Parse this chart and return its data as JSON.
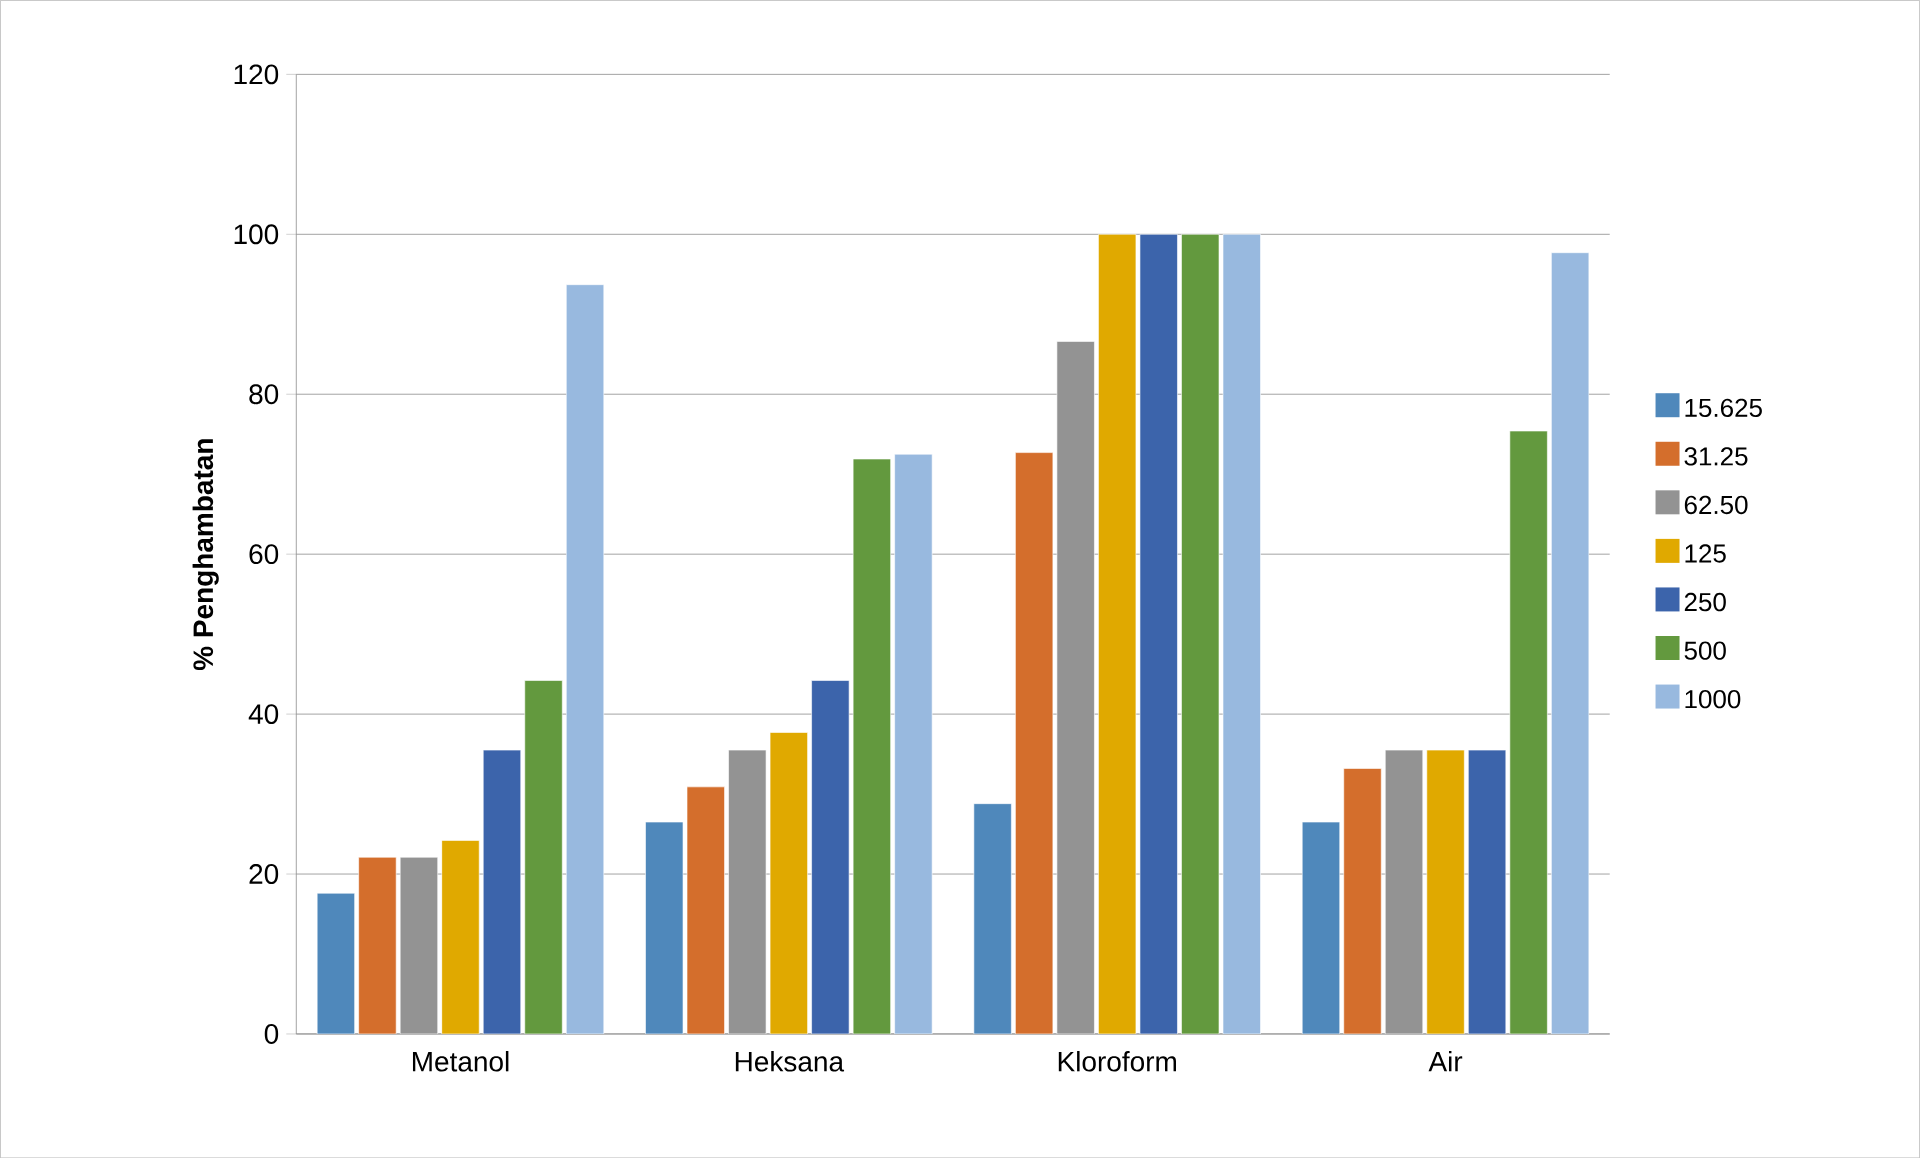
{
  "chart_data": {
    "type": "bar",
    "ylabel": "% Penghambatan",
    "categories": [
      "Metanol",
      "Heksana",
      "Kloroform",
      "Air"
    ],
    "series": [
      {
        "name": "15.625",
        "color": "#4f88bb",
        "values": [
          17.6,
          26.5,
          28.8,
          26.5
        ]
      },
      {
        "name": "31.25",
        "color": "#d46e2c",
        "values": [
          22.1,
          30.9,
          72.7,
          33.2
        ]
      },
      {
        "name": "62.50",
        "color": "#939393",
        "values": [
          22.1,
          35.5,
          86.6,
          35.5
        ]
      },
      {
        "name": "125",
        "color": "#e0a900",
        "values": [
          24.2,
          37.7,
          100,
          35.5
        ]
      },
      {
        "name": "250",
        "color": "#3c64ab",
        "values": [
          35.5,
          44.2,
          100,
          35.5
        ]
      },
      {
        "name": "500",
        "color": "#63993e",
        "values": [
          44.2,
          71.9,
          100,
          75.4
        ]
      },
      {
        "name": "1000",
        "color": "#98b9df",
        "values": [
          93.7,
          72.5,
          100,
          97.7
        ]
      }
    ],
    "ylim": [
      0,
      120
    ],
    "yticks": [
      0,
      20,
      40,
      60,
      80,
      100,
      120
    ],
    "grid": "y",
    "legend": "right"
  }
}
